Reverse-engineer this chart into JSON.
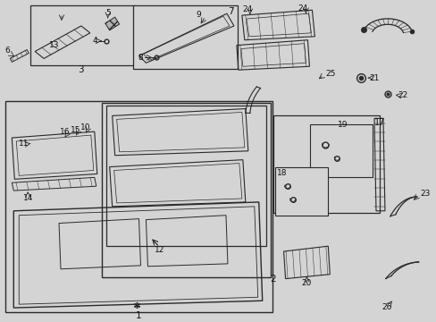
{
  "bg_color": "#d4d4d4",
  "line_color": "#2a2a2a",
  "fig_width": 4.89,
  "fig_height": 3.6,
  "dpi": 100
}
